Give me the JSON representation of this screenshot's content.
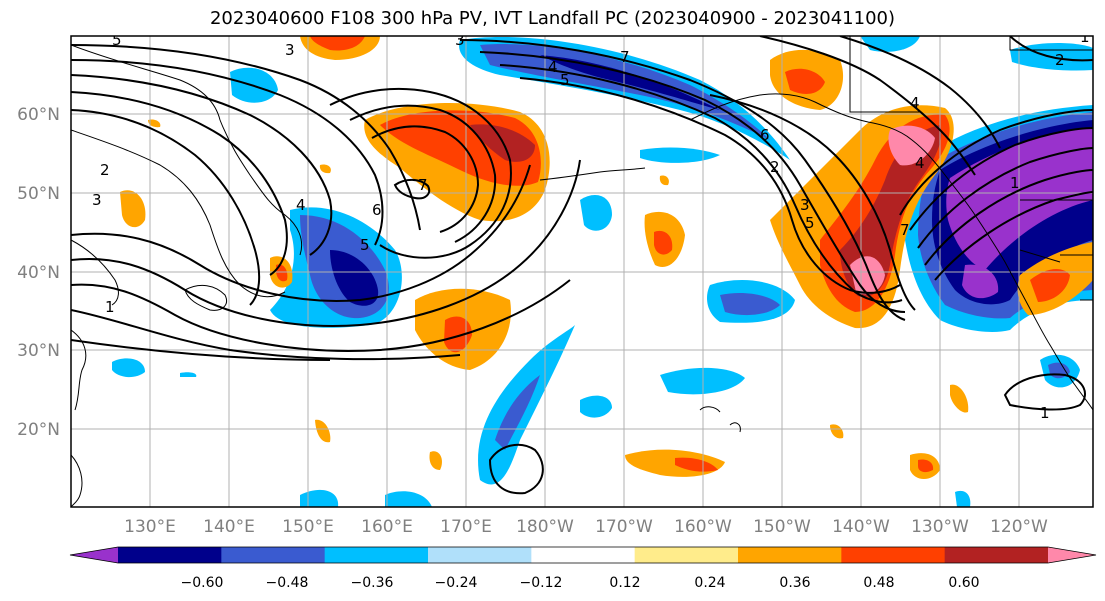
{
  "title": "2023040600 F108 300 hPa PV, IVT Landfall PC (2023040900 - 2023041100)",
  "map": {
    "lon_labels": [
      "130°E",
      "140°E",
      "150°E",
      "160°E",
      "170°E",
      "180°W",
      "170°W",
      "160°W",
      "150°W",
      "140°W",
      "130°W",
      "120°W"
    ],
    "lat_labels": [
      "60°N",
      "50°N",
      "40°N",
      "30°N",
      "20°N"
    ],
    "gridlines": true
  },
  "colorbar": {
    "colors": [
      "#9932cc",
      "#00008b",
      "#3a5bd0",
      "#00bfff",
      "#b0e0fa",
      "#ffffff",
      "#ffec8b",
      "#ffa500",
      "#ff4000",
      "#b22222",
      "#ff88aa"
    ],
    "tick_labels": [
      "−0.60",
      "−0.48",
      "−0.36",
      "−0.24",
      "−0.12",
      "0.12",
      "0.24",
      "0.36",
      "0.48",
      "0.60"
    ],
    "extend": "both"
  },
  "contour_labels": [
    "5",
    "3",
    "3",
    "2",
    "3",
    "4",
    "5",
    "6",
    "7",
    "1",
    "4",
    "5",
    "6",
    "7",
    "4",
    "3",
    "2",
    "1",
    "4",
    "7",
    "1",
    "1",
    "2",
    "5"
  ]
}
